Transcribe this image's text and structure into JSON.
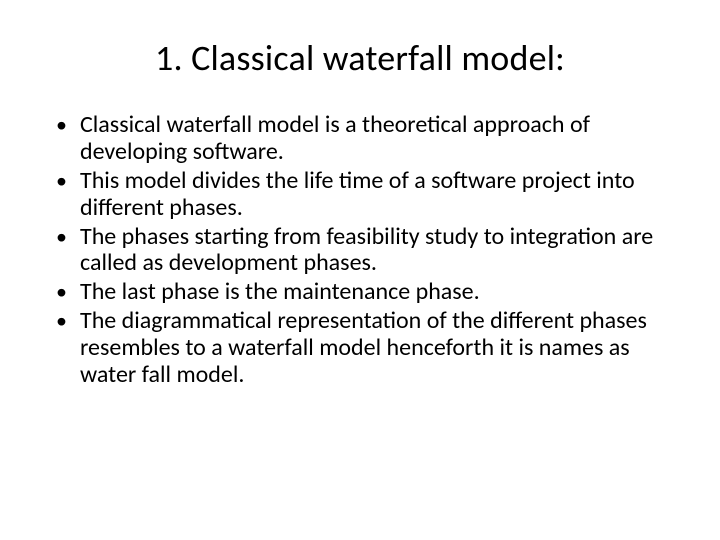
{
  "slide": {
    "title": "1. Classical waterfall model:",
    "bullets": [
      "Classical waterfall model is a theoretical approach of developing software.",
      "This model divides the life time of a software project into different phases.",
      " The phases starting from feasibility study to integration are called as development phases.",
      "The last phase is the maintenance phase.",
      "The diagrammatical representation of the different phases resembles to a waterfall model henceforth it is names as water fall model."
    ]
  },
  "style": {
    "background_color": "#ffffff",
    "text_color": "#000000",
    "title_fontsize": 36,
    "body_fontsize": 24,
    "font_family": "Calibri"
  }
}
